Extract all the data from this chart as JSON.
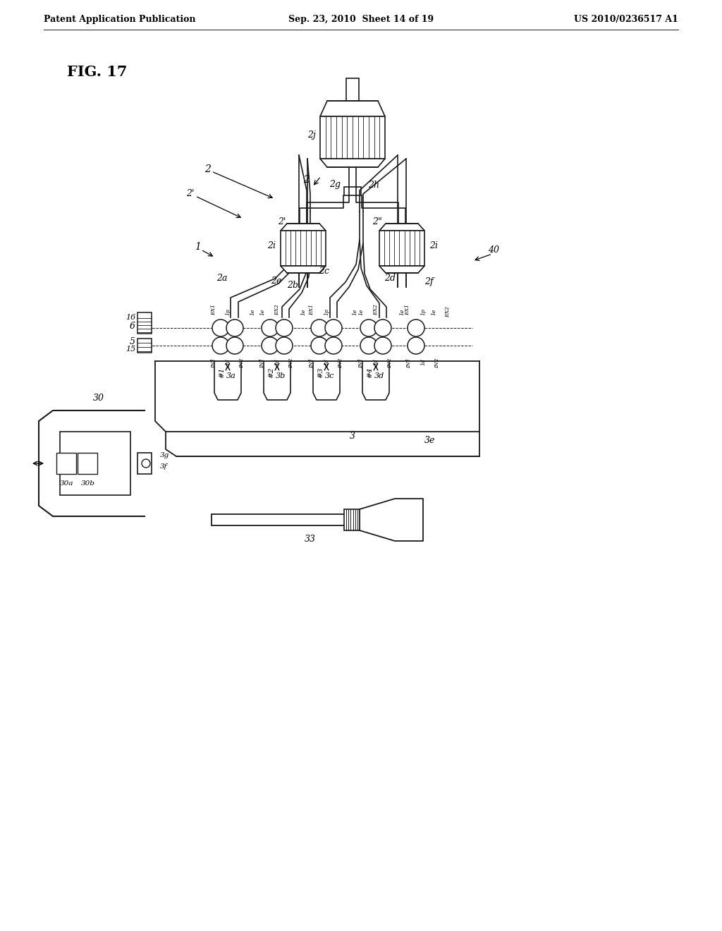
{
  "background_color": "#ffffff",
  "header_left": "Patent Application Publication",
  "header_mid": "Sep. 23, 2010  Sheet 14 of 19",
  "header_right": "US 2010/0236517 A1",
  "fig_label": "FIG. 17",
  "line_color": "#1a1a1a"
}
